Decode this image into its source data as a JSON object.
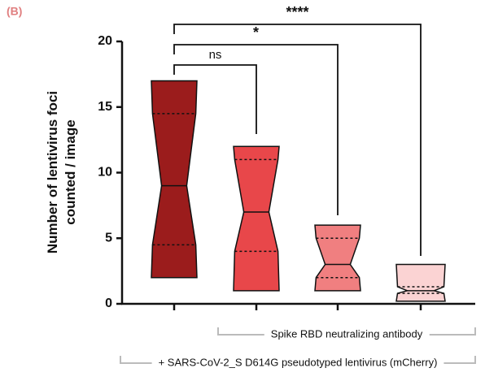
{
  "panel_label": "(B)",
  "chart_data": {
    "type": "violin",
    "ylabel": [
      "Number of lentivirus foci",
      "counted / image"
    ],
    "categories": [
      null,
      null,
      null,
      null
    ],
    "series": [
      {
        "color": "#9b1c1c",
        "min": 2,
        "q1": 4.5,
        "median": 9,
        "q3": 14.5,
        "max": 17
      },
      {
        "color": "#e8474a",
        "min": 1,
        "q1": 4,
        "median": 7,
        "q3": 11,
        "max": 12
      },
      {
        "color": "#f07f80",
        "min": 1,
        "q1": 2,
        "median": 3,
        "q3": 5,
        "max": 6
      },
      {
        "color": "#fbd3d3",
        "min": 0.2,
        "q1": 0.8,
        "median": 1,
        "q3": 1.3,
        "max": 3
      }
    ],
    "ylim": [
      0,
      20
    ],
    "yticks": [
      0,
      5,
      10,
      15,
      20
    ],
    "comparisons": [
      {
        "label": "ns"
      },
      {
        "label": "*"
      },
      {
        "label": "****"
      }
    ],
    "groups": [
      {
        "label": "Spike RBD neutralizing antibody"
      },
      {
        "label": "+ SARS-CoV-2_S D614G pseudotyped lentivirus (mCherry)"
      }
    ]
  }
}
